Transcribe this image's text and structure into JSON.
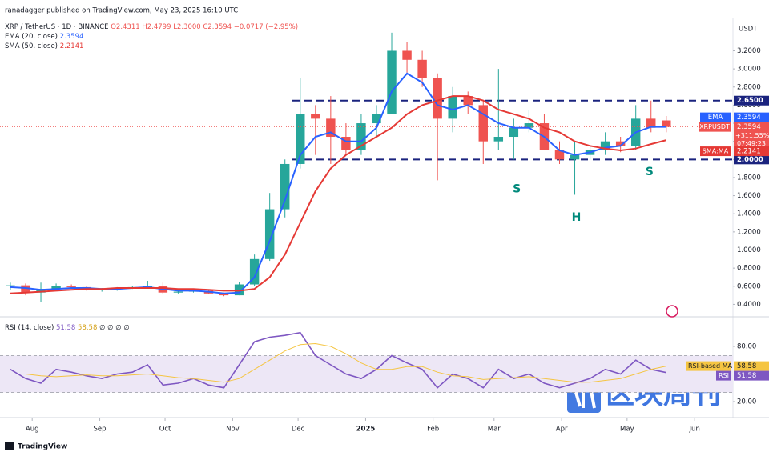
{
  "header": {
    "published": "ranadagger published on TradingView.com, May 23, 2025 16:10 UTC",
    "currency": "USDT"
  },
  "watermark": "区块周刊",
  "footer": "TradingView",
  "chart_data": [
    {
      "type": "candlestick",
      "title": "XRP / TetherUS · 1D · BINANCE",
      "ohlc_text": "O2.4311 H2.4799 L2.3000 C2.3594 −0.0717 (−2.95%)",
      "xlim": [
        -0.68,
        47.37
      ],
      "xticks": [
        {
          "value": 1.43,
          "label": "Aug"
        },
        {
          "value": 5.86,
          "label": "Sep"
        },
        {
          "value": 10.14,
          "label": "Oct"
        },
        {
          "value": 14.57,
          "label": "Nov"
        },
        {
          "value": 18.86,
          "label": "Dec"
        },
        {
          "value": 23.29,
          "label": "2025"
        },
        {
          "value": 27.71,
          "label": "Feb"
        },
        {
          "value": 31.71,
          "label": "Mar"
        },
        {
          "value": 36.14,
          "label": "Apr"
        },
        {
          "value": 40.43,
          "label": "May"
        },
        {
          "value": 44.86,
          "label": "Jun"
        }
      ],
      "ylim": [
        0.28,
        3.54
      ],
      "yticks": [
        {
          "value": 0.4,
          "label": "0.4000"
        },
        {
          "value": 0.6,
          "label": "0.6000"
        },
        {
          "value": 0.8,
          "label": "0.8000"
        },
        {
          "value": 1,
          "label": "1.0000"
        },
        {
          "value": 1.2,
          "label": "1.2000"
        },
        {
          "value": 1.4,
          "label": "1.4000"
        },
        {
          "value": 1.6,
          "label": "1.6000"
        },
        {
          "value": 1.8,
          "label": "1.8000"
        },
        {
          "value": 2,
          "label": "2.0000"
        },
        {
          "value": 2.2,
          "label": "2.2000"
        },
        {
          "value": 2.4,
          "label": "2.4000"
        },
        {
          "value": 2.6,
          "label": "2.6000"
        },
        {
          "value": 2.8,
          "label": "2.8000"
        },
        {
          "value": 3,
          "label": "3.0000"
        },
        {
          "value": 3.2,
          "label": "3.2000"
        }
      ],
      "grid": false,
      "up_color": "#26a69a",
      "down_color": "#ef5350",
      "open": [
        0.6,
        0.61,
        0.53,
        0.57,
        0.6,
        0.59,
        0.56,
        0.57,
        0.58,
        0.59,
        0.6,
        0.53,
        0.54,
        0.55,
        0.52,
        0.5,
        0.62,
        0.9,
        1.45,
        1.95,
        2.5,
        2.45,
        2.25,
        2.1,
        2.4,
        2.5,
        3.2,
        3.1,
        2.9,
        2.45,
        2.7,
        2.6,
        2.2,
        2.25,
        2.35,
        2.4,
        2.1,
        2.0,
        2.05,
        2.1,
        2.2,
        2.15,
        2.45,
        2.4311
      ],
      "high": [
        0.64,
        0.63,
        0.64,
        0.63,
        0.62,
        0.6,
        0.58,
        0.59,
        0.6,
        0.66,
        0.64,
        0.55,
        0.56,
        0.56,
        0.53,
        0.65,
        0.95,
        1.63,
        2.0,
        2.9,
        2.6,
        2.7,
        2.4,
        2.5,
        2.6,
        3.4,
        3.3,
        3.2,
        2.95,
        2.8,
        2.75,
        2.65,
        3.0,
        2.45,
        2.55,
        2.5,
        2.2,
        2.2,
        2.15,
        2.3,
        2.25,
        2.6,
        2.65,
        2.4799
      ],
      "low": [
        0.56,
        0.5,
        0.43,
        0.55,
        0.58,
        0.55,
        0.54,
        0.55,
        0.57,
        0.58,
        0.51,
        0.52,
        0.53,
        0.51,
        0.49,
        0.5,
        0.6,
        0.88,
        1.36,
        1.9,
        2.05,
        1.95,
        2.05,
        2.05,
        2.25,
        2.5,
        2.95,
        2.8,
        1.77,
        2.3,
        2.5,
        1.95,
        2.1,
        2.0,
        2.3,
        2.1,
        1.95,
        1.61,
        2.0,
        2.05,
        2.08,
        2.1,
        2.3,
        2.3
      ],
      "close": [
        0.61,
        0.53,
        0.57,
        0.6,
        0.59,
        0.56,
        0.57,
        0.58,
        0.59,
        0.6,
        0.53,
        0.54,
        0.55,
        0.52,
        0.5,
        0.62,
        0.9,
        1.45,
        1.95,
        2.5,
        2.45,
        2.25,
        2.1,
        2.4,
        2.5,
        3.2,
        3.1,
        2.9,
        2.45,
        2.7,
        2.6,
        2.2,
        2.25,
        2.35,
        2.4,
        2.1,
        2.0,
        2.05,
        2.1,
        2.2,
        2.15,
        2.45,
        2.35,
        2.3594
      ],
      "series": [
        {
          "name": "EMA (20, close)",
          "badge": "EMA",
          "color": "#2962ff",
          "values": [
            0.59,
            0.58,
            0.56,
            0.57,
            0.58,
            0.58,
            0.57,
            0.57,
            0.58,
            0.59,
            0.57,
            0.55,
            0.55,
            0.54,
            0.52,
            0.53,
            0.7,
            1.1,
            1.55,
            2.05,
            2.25,
            2.3,
            2.2,
            2.2,
            2.35,
            2.75,
            2.95,
            2.85,
            2.6,
            2.55,
            2.6,
            2.5,
            2.4,
            2.35,
            2.35,
            2.25,
            2.1,
            2.05,
            2.08,
            2.13,
            2.15,
            2.3,
            2.36,
            2.3594
          ]
        },
        {
          "name": "SMA (50, close)",
          "badge": "SMA:MA",
          "color": "#e53935",
          "values": [
            0.52,
            0.53,
            0.54,
            0.55,
            0.56,
            0.57,
            0.57,
            0.58,
            0.58,
            0.58,
            0.58,
            0.57,
            0.57,
            0.56,
            0.55,
            0.55,
            0.57,
            0.7,
            0.95,
            1.3,
            1.65,
            1.9,
            2.05,
            2.15,
            2.25,
            2.35,
            2.5,
            2.6,
            2.65,
            2.7,
            2.7,
            2.65,
            2.55,
            2.5,
            2.45,
            2.35,
            2.3,
            2.2,
            2.15,
            2.12,
            2.1,
            2.12,
            2.17,
            2.2141
          ]
        }
      ],
      "symbol_badge": "XRPUSDT",
      "change_label": "+311.55%",
      "countdown": "07:49:23",
      "levels": [
        {
          "value": 2.65,
          "label": "2.6500"
        },
        {
          "value": 2,
          "label": "2.0000"
        }
      ],
      "level_color": "#1a237e",
      "annotations": [
        {
          "text": "S",
          "x": 33.2,
          "y": 1.672
        },
        {
          "text": "H",
          "x": 37.1,
          "y": 1.36
        },
        {
          "text": "S",
          "x": 41.9,
          "y": 1.86
        }
      ],
      "annotation_color": "#00897b"
    },
    {
      "type": "line",
      "title": "RSI (14, close)",
      "legend_extra": "∅ ∅ ∅ ∅",
      "ylim": [
        2.6,
        110.4
      ],
      "yticks": [
        {
          "value": 20,
          "label": "20.00"
        },
        {
          "value": 80,
          "label": "80.00"
        }
      ],
      "band": [
        30,
        70
      ],
      "band_color": "#ede7f6",
      "levels": [
        30,
        50,
        70
      ],
      "series": [
        {
          "name": "RSI",
          "color": "#7e57c2",
          "values": [
            55,
            45,
            40,
            55,
            52,
            48,
            45,
            50,
            52,
            60,
            38,
            40,
            45,
            38,
            35,
            60,
            85,
            90,
            92,
            95,
            70,
            60,
            50,
            45,
            55,
            70,
            62,
            55,
            35,
            50,
            45,
            35,
            55,
            45,
            50,
            40,
            35,
            40,
            45,
            55,
            50,
            65,
            55,
            51.58
          ]
        },
        {
          "name": "RSI-based MA",
          "color": "#f5c542",
          "values": [
            50,
            50,
            48,
            47,
            48,
            49,
            48,
            48,
            49,
            50,
            48,
            46,
            45,
            43,
            41,
            45,
            55,
            65,
            75,
            82,
            83,
            80,
            72,
            62,
            55,
            55,
            58,
            58,
            52,
            48,
            47,
            44,
            45,
            46,
            47,
            45,
            43,
            41,
            41,
            43,
            45,
            50,
            55,
            58.58
          ]
        }
      ]
    }
  ]
}
